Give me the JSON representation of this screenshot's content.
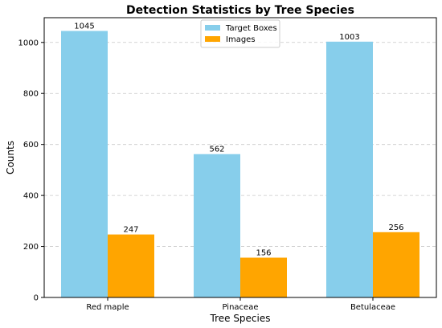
{
  "chart_data": {
    "type": "bar",
    "title": "Detection Statistics by Tree Species",
    "xlabel": "Tree Species",
    "ylabel": "Counts",
    "categories": [
      "Red maple",
      "Pinaceae",
      "Betulaceae"
    ],
    "series": [
      {
        "name": "Target Boxes",
        "color": "#87CEEB",
        "values": [
          1045,
          562,
          1003
        ]
      },
      {
        "name": "Images",
        "color": "#FFA500",
        "values": [
          247,
          156,
          256
        ]
      }
    ],
    "ylim": [
      0,
      1097
    ],
    "yticks": [
      0,
      200,
      400,
      600,
      800,
      1000
    ],
    "grid": {
      "y": true,
      "x": false,
      "style": "dashed"
    },
    "legend_position": "top-center"
  }
}
